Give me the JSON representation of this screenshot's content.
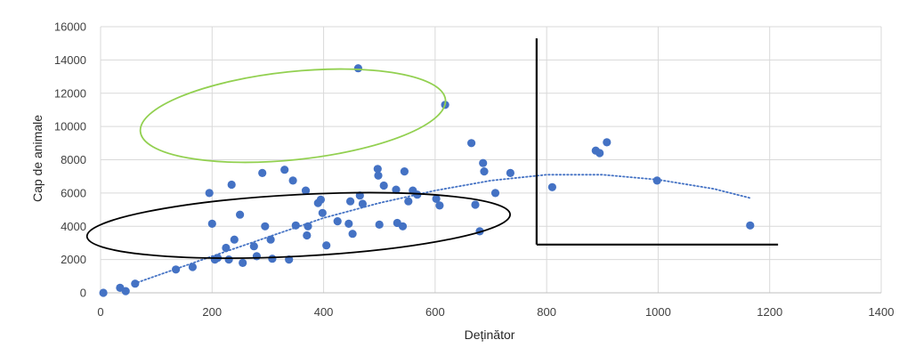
{
  "chart_data": {
    "type": "scatter",
    "title": "",
    "xlabel": "Deținător",
    "ylabel": "Cap de animale",
    "xlim": [
      0,
      1400
    ],
    "ylim": [
      0,
      16000
    ],
    "x_ticks": [
      0,
      200,
      400,
      600,
      800,
      1000,
      1200,
      1400
    ],
    "y_ticks": [
      0,
      2000,
      4000,
      6000,
      8000,
      10000,
      12000,
      14000,
      16000
    ],
    "grid": true,
    "legend": "none",
    "marker_color": "#4472C4",
    "trendline": {
      "type": "polynomial",
      "style": "dotted",
      "color": "#4472C4",
      "x_range": [
        60,
        1165
      ],
      "points": [
        [
          60,
          550
        ],
        [
          200,
          2200
        ],
        [
          300,
          3350
        ],
        [
          400,
          4500
        ],
        [
          500,
          5400
        ],
        [
          600,
          6150
        ],
        [
          700,
          6750
        ],
        [
          800,
          7100
        ],
        [
          900,
          7100
        ],
        [
          1000,
          6800
        ],
        [
          1100,
          6250
        ],
        [
          1165,
          5700
        ]
      ]
    },
    "series": [
      {
        "points": [
          [
            5,
            0
          ],
          [
            35,
            300
          ],
          [
            45,
            100
          ],
          [
            62,
            550
          ],
          [
            135,
            1400
          ],
          [
            165,
            1550
          ],
          [
            195,
            6000
          ],
          [
            200,
            4150
          ],
          [
            205,
            2000
          ],
          [
            210,
            2100
          ],
          [
            225,
            2700
          ],
          [
            230,
            2000
          ],
          [
            235,
            6500
          ],
          [
            240,
            3200
          ],
          [
            250,
            4700
          ],
          [
            255,
            1800
          ],
          [
            275,
            2800
          ],
          [
            280,
            2200
          ],
          [
            290,
            7200
          ],
          [
            295,
            4000
          ],
          [
            305,
            3200
          ],
          [
            308,
            2050
          ],
          [
            330,
            7400
          ],
          [
            338,
            2000
          ],
          [
            345,
            6750
          ],
          [
            350,
            4050
          ],
          [
            368,
            6150
          ],
          [
            370,
            3450
          ],
          [
            372,
            4000
          ],
          [
            390,
            5400
          ],
          [
            395,
            5600
          ],
          [
            398,
            4800
          ],
          [
            405,
            2850
          ],
          [
            425,
            4300
          ],
          [
            445,
            4150
          ],
          [
            448,
            5500
          ],
          [
            452,
            3550
          ],
          [
            462,
            13500
          ],
          [
            465,
            5850
          ],
          [
            470,
            5350
          ],
          [
            497,
            7450
          ],
          [
            498,
            7050
          ],
          [
            500,
            4100
          ],
          [
            508,
            6450
          ],
          [
            530,
            6200
          ],
          [
            532,
            4200
          ],
          [
            542,
            4000
          ],
          [
            545,
            7300
          ],
          [
            552,
            5500
          ],
          [
            560,
            6150
          ],
          [
            568,
            5900
          ],
          [
            602,
            5650
          ],
          [
            608,
            5250
          ],
          [
            618,
            11300
          ],
          [
            665,
            9000
          ],
          [
            672,
            5300
          ],
          [
            680,
            3700
          ],
          [
            686,
            7800
          ],
          [
            688,
            7300
          ],
          [
            708,
            6000
          ],
          [
            735,
            7200
          ],
          [
            810,
            6350
          ],
          [
            888,
            8550
          ],
          [
            895,
            8400
          ],
          [
            908,
            9050
          ],
          [
            998,
            6750
          ],
          [
            1165,
            4050
          ]
        ]
      }
    ],
    "annotations": [
      {
        "shape": "ellipse",
        "color": "#92D050",
        "center": [
          345,
          10650
        ],
        "rx": 275,
        "ry": 2650,
        "rotation_deg": -6
      },
      {
        "shape": "ellipse",
        "color": "#000000",
        "center": [
          355,
          4050
        ],
        "rx": 380,
        "ry": 1850,
        "rotation_deg": -3
      },
      {
        "shape": "corner-lines",
        "color": "#000000",
        "vertical": [
          [
            782,
            15300
          ],
          [
            782,
            2900
          ]
        ],
        "horizontal": [
          [
            782,
            2900
          ],
          [
            1215,
            2900
          ]
        ]
      }
    ]
  }
}
